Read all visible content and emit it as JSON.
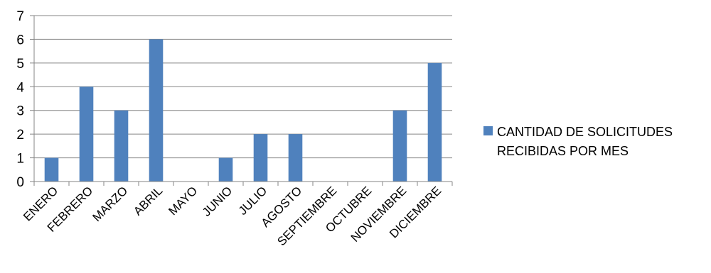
{
  "chart_data": {
    "type": "bar",
    "categories": [
      "ENERO",
      "FEBRERO",
      "MARZO",
      "ABRIL",
      "MAYO",
      "JUNIO",
      "JULIO",
      "AGOSTO",
      "SEPTIEMBRE",
      "OCTUBRE",
      "NOVIEMBRE",
      "DICIEMBRE"
    ],
    "series": [
      {
        "name": "CANTIDAD DE SOLICITUDES RECIBIDAS POR MES",
        "values": [
          1,
          4,
          3,
          6,
          0,
          1,
          2,
          2,
          0,
          0,
          3,
          5
        ],
        "color": "#4F81BD"
      }
    ],
    "ylim": [
      0,
      7
    ],
    "yticks": [
      "0",
      "1",
      "2",
      "3",
      "4",
      "5",
      "6",
      "7"
    ],
    "grid": true,
    "legend": "right"
  }
}
